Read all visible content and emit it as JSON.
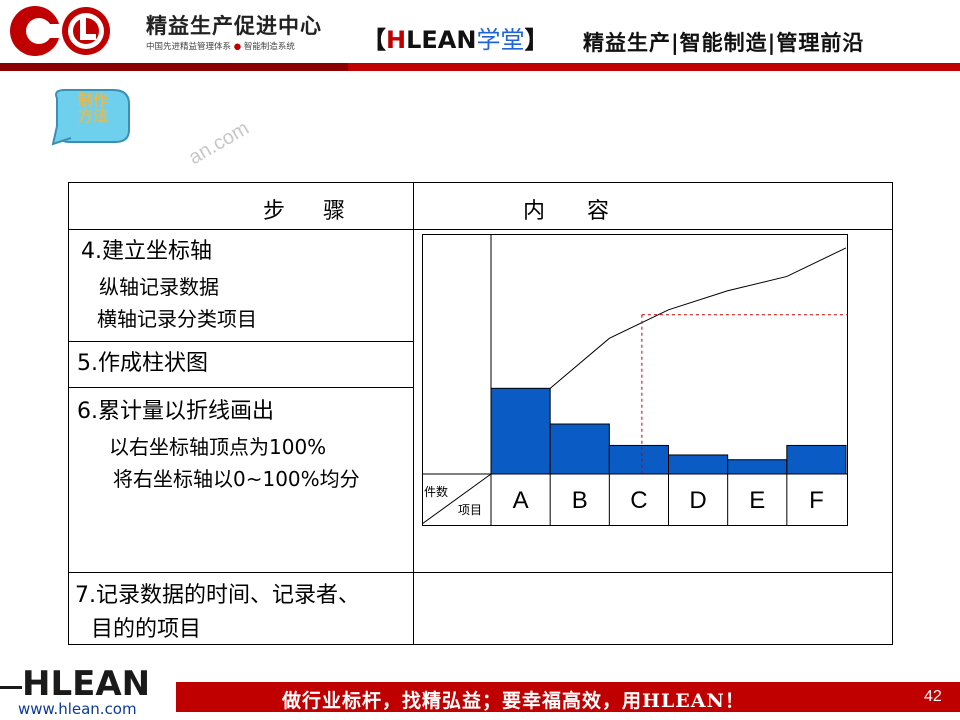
{
  "header": {
    "brand_title": "精益生产促进中心",
    "brand_sub_left": "中国先进精益管理体系",
    "brand_sub_dot": "●",
    "brand_sub_right": "智能制造系统",
    "tag_open": "【",
    "tag_h": "H",
    "tag_rest": "LEAN",
    "tag_school": "学堂",
    "tag_close": "】",
    "slogan": "精益生产|智能制造|管理前沿"
  },
  "badge": {
    "line1": "制作",
    "line2": "方法"
  },
  "watermark": "an.com",
  "table": {
    "header_step": "步    骤",
    "header_content": "内      容",
    "steps": [
      {
        "title": "4.建立坐标轴",
        "subs": [
          "纵轴记录数据",
          "横轴记录分类项目"
        ]
      },
      {
        "title": "5.作成柱状图",
        "subs": []
      },
      {
        "title": "6.累计量以折线画出",
        "subs": [
          "以右坐标轴顶点为100%",
          "将右坐标轴以0~100%均分"
        ]
      },
      {
        "title_line1": "7.记录数据的时间、记录者、",
        "title_line2": "目的的项目"
      }
    ]
  },
  "chart_data": {
    "type": "bar",
    "categories": [
      "A",
      "B",
      "C",
      "D",
      "E",
      "F"
    ],
    "values": [
      36,
      21,
      12,
      8,
      6,
      12
    ],
    "cumulative": [
      36,
      57,
      69,
      77,
      83,
      95
    ],
    "ylim": [
      0,
      100
    ],
    "corner_top": "件数",
    "corner_bottom": "项目",
    "bar_color": "#0a5bc4",
    "line_color": "#000000",
    "guide_color": "#c00000"
  },
  "footer": {
    "logo": "HLEAN",
    "url": "www.hlean.com",
    "slogan": "做行业标杆，找精弘益；要幸福高效，用HLEAN！",
    "page": "42"
  }
}
